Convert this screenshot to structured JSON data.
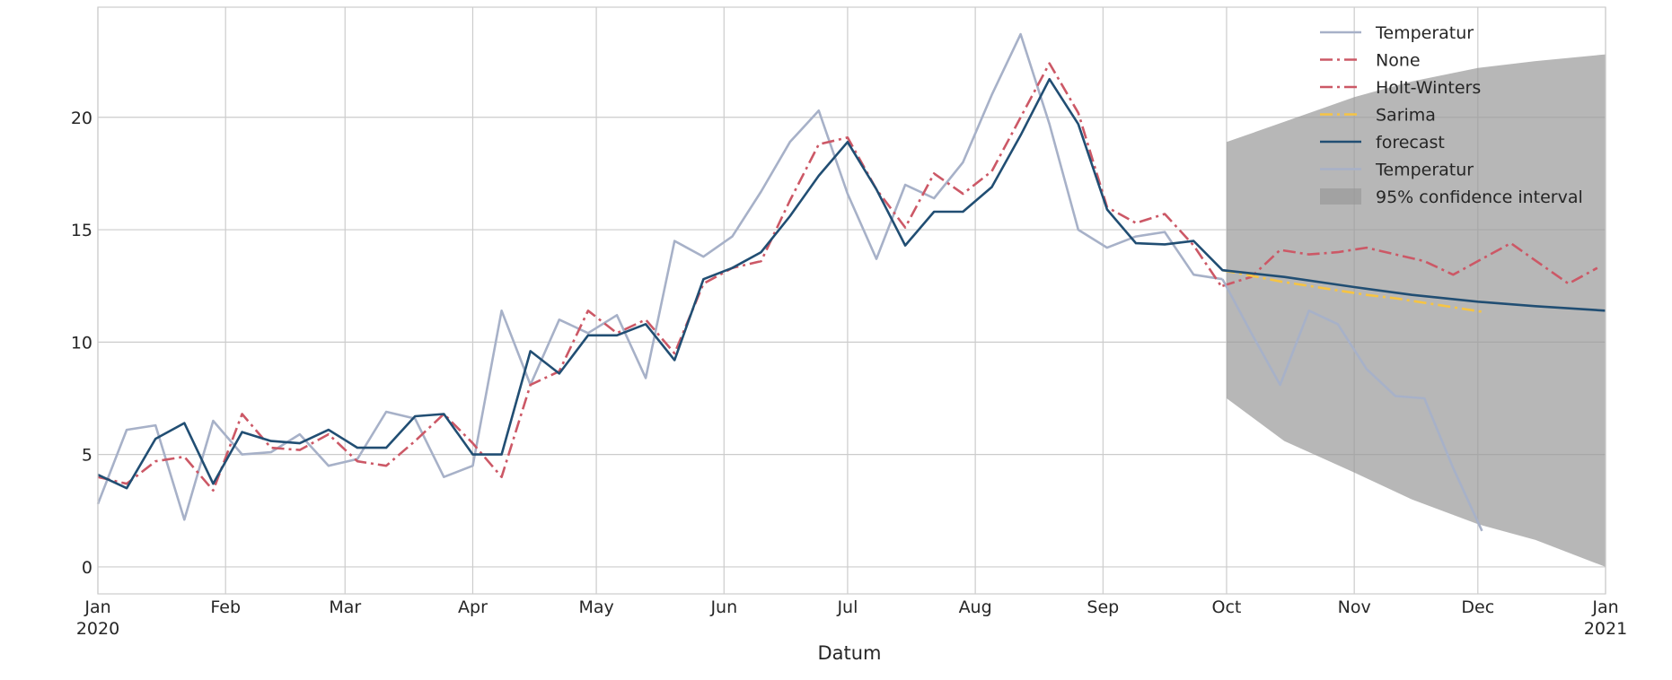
{
  "chart_data": {
    "type": "line",
    "title": "",
    "xlabel": "Datum",
    "ylabel": "",
    "grid": true,
    "legend_position": "top-right",
    "xlim": [
      "2020-01-01",
      "2021-01-01"
    ],
    "ylim": [
      -1.2,
      24.9
    ],
    "x_ticks": [
      {
        "date": "2020-01-01",
        "label": "Jan",
        "sublabel": "2020"
      },
      {
        "date": "2020-02-01",
        "label": "Feb"
      },
      {
        "date": "2020-03-01",
        "label": "Mar"
      },
      {
        "date": "2020-04-01",
        "label": "Apr"
      },
      {
        "date": "2020-05-01",
        "label": "May"
      },
      {
        "date": "2020-06-01",
        "label": "Jun"
      },
      {
        "date": "2020-07-01",
        "label": "Jul"
      },
      {
        "date": "2020-08-01",
        "label": "Aug"
      },
      {
        "date": "2020-09-01",
        "label": "Sep"
      },
      {
        "date": "2020-10-01",
        "label": "Oct"
      },
      {
        "date": "2020-11-01",
        "label": "Nov"
      },
      {
        "date": "2020-12-01",
        "label": "Dec"
      },
      {
        "date": "2021-01-01",
        "label": "Jan",
        "sublabel": "2021"
      }
    ],
    "y_ticks": [
      0,
      5,
      10,
      15,
      20
    ],
    "series": [
      {
        "name": "Temperatur",
        "color": "#a7b1c8",
        "style": "solid",
        "x": [
          "2020-01-01",
          "2020-01-08",
          "2020-01-15",
          "2020-01-22",
          "2020-01-29",
          "2020-02-05",
          "2020-02-12",
          "2020-02-19",
          "2020-02-26",
          "2020-03-04",
          "2020-03-11",
          "2020-03-18",
          "2020-03-25",
          "2020-04-01",
          "2020-04-08",
          "2020-04-15",
          "2020-04-22",
          "2020-04-29",
          "2020-05-06",
          "2020-05-13",
          "2020-05-20",
          "2020-05-27",
          "2020-06-03",
          "2020-06-10",
          "2020-06-17",
          "2020-06-24",
          "2020-07-01",
          "2020-07-08",
          "2020-07-15",
          "2020-07-22",
          "2020-07-29",
          "2020-08-05",
          "2020-08-12",
          "2020-08-19",
          "2020-08-26",
          "2020-09-02",
          "2020-09-09",
          "2020-09-16",
          "2020-09-23",
          "2020-09-30"
        ],
        "y": [
          2.8,
          6.1,
          6.3,
          2.1,
          6.5,
          5.0,
          5.1,
          5.9,
          4.5,
          4.8,
          6.9,
          6.6,
          4.0,
          4.5,
          11.4,
          8.1,
          11.0,
          10.4,
          11.2,
          8.4,
          14.5,
          13.8,
          14.7,
          16.7,
          18.9,
          20.3,
          16.6,
          13.7,
          17.0,
          16.4,
          18.0,
          21.0,
          23.7,
          19.7,
          15.0,
          14.2,
          14.7,
          14.9,
          13.0,
          12.8
        ]
      },
      {
        "name": "None",
        "color": "#cc5866",
        "style": "dashdot",
        "x": [
          "2020-01-01",
          "2020-01-08",
          "2020-01-15",
          "2020-01-22",
          "2020-01-29",
          "2020-02-05",
          "2020-02-12",
          "2020-02-19",
          "2020-02-26",
          "2020-03-04",
          "2020-03-11",
          "2020-03-18",
          "2020-03-25",
          "2020-04-01",
          "2020-04-08",
          "2020-04-15",
          "2020-04-22",
          "2020-04-29",
          "2020-05-06",
          "2020-05-13",
          "2020-05-20",
          "2020-05-27",
          "2020-06-03",
          "2020-06-10",
          "2020-06-17",
          "2020-06-24",
          "2020-07-01",
          "2020-07-08",
          "2020-07-15",
          "2020-07-22",
          "2020-07-29",
          "2020-08-05",
          "2020-08-12",
          "2020-08-19",
          "2020-08-26",
          "2020-09-02",
          "2020-09-09",
          "2020-09-16",
          "2020-09-23",
          "2020-09-30"
        ],
        "y": [
          4.0,
          3.7,
          4.7,
          4.9,
          3.4,
          6.8,
          5.3,
          5.2,
          5.9,
          4.7,
          4.5,
          5.6,
          6.8,
          5.5,
          4.0,
          8.1,
          8.7,
          11.4,
          10.4,
          11.0,
          9.5,
          12.6,
          13.3,
          13.6,
          16.3,
          18.8,
          19.1,
          16.8,
          15.1,
          17.5,
          16.6,
          17.6,
          20.0,
          22.4,
          20.2,
          16.0,
          15.3,
          15.7,
          14.3,
          12.4
        ]
      },
      {
        "name": "Holt-Winters",
        "color": "#cc5866",
        "style": "dashdot",
        "x": [
          "2020-09-30",
          "2020-10-07",
          "2020-10-14",
          "2020-10-21",
          "2020-10-28",
          "2020-11-04",
          "2020-11-11",
          "2020-11-18",
          "2020-11-25",
          "2020-12-02",
          "2020-12-09",
          "2020-12-16",
          "2020-12-23",
          "2020-12-30"
        ],
        "y": [
          12.5,
          12.9,
          14.1,
          13.9,
          14.0,
          14.2,
          13.9,
          13.6,
          13.0,
          13.7,
          14.4,
          13.5,
          12.6,
          13.3
        ]
      },
      {
        "name": "Sarima",
        "color": "#f6c443",
        "style": "dashdot",
        "x": [
          "2020-09-30",
          "2020-10-07",
          "2020-10-14",
          "2020-10-21",
          "2020-10-28",
          "2020-11-04",
          "2020-11-11",
          "2020-11-18",
          "2020-11-25",
          "2020-12-02"
        ],
        "y": [
          13.2,
          12.95,
          12.7,
          12.5,
          12.3,
          12.1,
          11.95,
          11.75,
          11.55,
          11.35
        ]
      },
      {
        "name": "forecast",
        "color": "#214e73",
        "style": "solid",
        "x": [
          "2020-01-01",
          "2020-01-08",
          "2020-01-15",
          "2020-01-22",
          "2020-01-29",
          "2020-02-05",
          "2020-02-12",
          "2020-02-19",
          "2020-02-26",
          "2020-03-04",
          "2020-03-11",
          "2020-03-18",
          "2020-03-25",
          "2020-04-01",
          "2020-04-08",
          "2020-04-15",
          "2020-04-22",
          "2020-04-29",
          "2020-05-06",
          "2020-05-13",
          "2020-05-20",
          "2020-05-27",
          "2020-06-03",
          "2020-06-10",
          "2020-06-17",
          "2020-06-24",
          "2020-07-01",
          "2020-07-08",
          "2020-07-15",
          "2020-07-22",
          "2020-07-29",
          "2020-08-05",
          "2020-08-12",
          "2020-08-19",
          "2020-08-26",
          "2020-09-02",
          "2020-09-09",
          "2020-09-16",
          "2020-09-23",
          "2020-09-30",
          "2020-10-15",
          "2020-11-01",
          "2020-11-15",
          "2020-12-01",
          "2020-12-15",
          "2021-01-01"
        ],
        "y": [
          4.1,
          3.5,
          5.7,
          6.4,
          3.7,
          6.0,
          5.6,
          5.5,
          6.1,
          5.3,
          5.3,
          6.7,
          6.8,
          5.0,
          5.0,
          9.6,
          8.6,
          10.3,
          10.3,
          10.8,
          9.2,
          12.8,
          13.3,
          14.0,
          15.6,
          17.4,
          18.9,
          16.8,
          14.3,
          15.8,
          15.8,
          16.9,
          19.2,
          21.7,
          19.7,
          15.9,
          14.4,
          14.35,
          14.5,
          13.2,
          12.9,
          12.45,
          12.1,
          11.8,
          11.6,
          11.4
        ]
      },
      {
        "name": "Temperatur",
        "color": "#a7b1c8",
        "style": "solid",
        "x": [
          "2020-09-30",
          "2020-10-07",
          "2020-10-14",
          "2020-10-21",
          "2020-10-28",
          "2020-11-04",
          "2020-11-11",
          "2020-11-18",
          "2020-11-25",
          "2020-12-02"
        ],
        "y": [
          12.8,
          10.4,
          8.1,
          11.4,
          10.8,
          8.8,
          7.6,
          7.5,
          4.4,
          1.6
        ]
      }
    ],
    "confidence_interval": {
      "name": "95% confidence interval",
      "color": "#999999",
      "opacity": 0.7,
      "x": [
        "2020-10-01",
        "2020-10-15",
        "2020-11-01",
        "2020-11-15",
        "2020-12-01",
        "2020-12-15",
        "2021-01-01"
      ],
      "lower": [
        7.5,
        5.6,
        4.2,
        3.0,
        1.9,
        1.2,
        0.0
      ],
      "upper": [
        18.9,
        19.8,
        20.9,
        21.6,
        22.2,
        22.5,
        22.8
      ]
    },
    "legend": [
      "Temperatur",
      "None",
      "Holt-Winters",
      "Sarima",
      "forecast",
      "Temperatur",
      "95% confidence interval"
    ]
  }
}
